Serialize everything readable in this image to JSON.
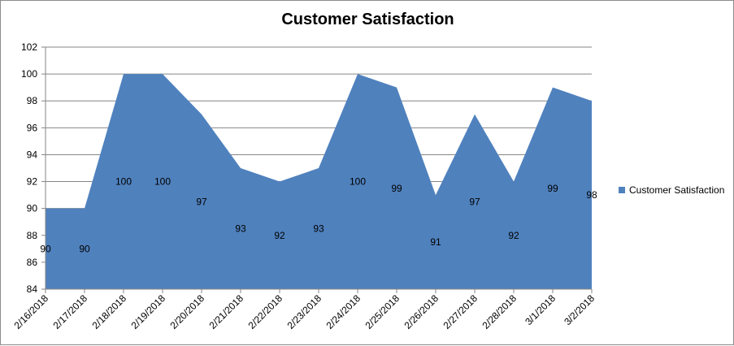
{
  "chart_data": {
    "type": "area",
    "title": "Customer Satisfaction",
    "categories": [
      "2/16/2018",
      "2/17/2018",
      "2/18/2018",
      "2/19/2018",
      "2/20/2018",
      "2/21/2018",
      "2/22/2018",
      "2/23/2018",
      "2/24/2018",
      "2/25/2018",
      "2/26/2018",
      "2/27/2018",
      "2/28/2018",
      "3/1/2018",
      "3/2/2018"
    ],
    "series": [
      {
        "name": "Customer Satisfaction",
        "values": [
          90,
          90,
          100,
          100,
          97,
          93,
          92,
          93,
          100,
          99,
          91,
          97,
          92,
          99,
          98
        ]
      }
    ],
    "ylim": [
      84,
      102
    ],
    "yticks": [
      84,
      86,
      88,
      90,
      92,
      94,
      96,
      98,
      100,
      102
    ],
    "grid": true,
    "legend": "right",
    "colors": {
      "series": "#4f81bd",
      "grid": "#868686",
      "axis": "#868686"
    }
  }
}
